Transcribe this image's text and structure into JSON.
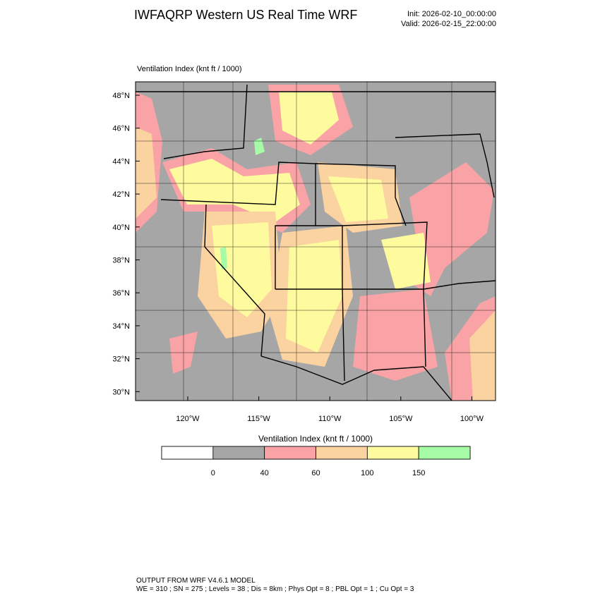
{
  "header": {
    "title": "IWFAQRP Western US Real Time WRF",
    "init": "Init: 2026-02-10_00:00:00",
    "valid": "Valid: 2026-02-15_22:00:00"
  },
  "map": {
    "field_label": "Ventilation Index   (knt ft / 1000)",
    "lat_labels": [
      "48°N",
      "46°N",
      "44°N",
      "42°N",
      "40°N",
      "38°N",
      "36°N",
      "34°N",
      "32°N",
      "30°N"
    ],
    "lon_labels": [
      "120°W",
      "115°W",
      "110°W",
      "105°W",
      "100°W"
    ]
  },
  "colorbar": {
    "label": "Ventilation Index   (knt ft / 1000)",
    "colors": [
      "#ffffff",
      "#a6a6a6",
      "#f9a3a6",
      "#fbd3a0",
      "#fdfb9e",
      "#a6fca6"
    ],
    "ticks": [
      "0",
      "40",
      "60",
      "100",
      "150"
    ]
  },
  "footer": {
    "line1": "OUTPUT FROM WRF V4.6.1 MODEL",
    "line2": "WE = 310 ; SN = 275 ; Levels = 38 ; Dis = 8km ; Phys Opt = 8 ; PBL Opt = 1 ; Cu Opt = 3"
  }
}
